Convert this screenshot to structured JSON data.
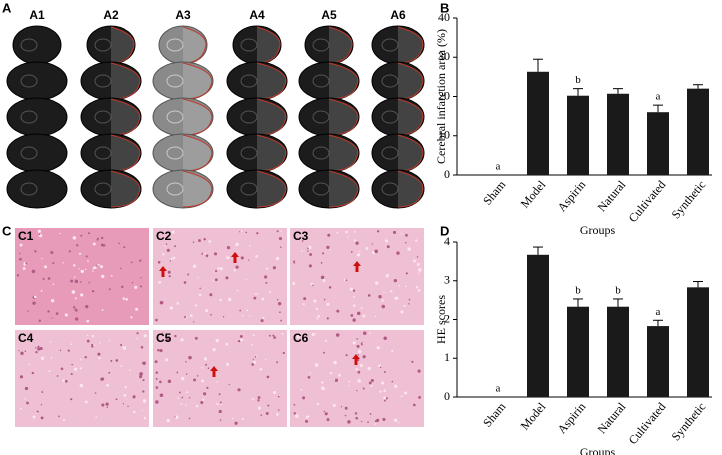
{
  "panel_labels": [
    "A",
    "B",
    "C",
    "D"
  ],
  "brain_images": [
    "A1",
    "A2",
    "A3",
    "A4",
    "A5",
    "A6"
  ],
  "histology_images": [
    "C1",
    "C2",
    "C3",
    "C4",
    "C5",
    "C6"
  ],
  "chart_data": [
    {
      "type": "bar",
      "ylabel": "Cerebral infarction area (%)",
      "xlabel": "Groups",
      "categories": [
        "Sham",
        "Model",
        "Aspirin",
        "Natural",
        "Cultivated",
        "Synthetic"
      ],
      "values": [
        0,
        26.3,
        20.2,
        20.7,
        16,
        22
      ],
      "errors": [
        0,
        3.2,
        1.8,
        1.3,
        1.8,
        1.0
      ],
      "annotations": [
        "a",
        null,
        "b",
        null,
        "a",
        null
      ],
      "color": "#1a1a1a",
      "ylim": [
        0,
        40
      ],
      "yticks": [
        0,
        10,
        20,
        30,
        40
      ]
    },
    {
      "type": "bar",
      "ylabel": "HE scores",
      "xlabel": "Groups",
      "categories": [
        "Sham",
        "Model",
        "Aspirin",
        "Natural",
        "Cultivated",
        "Synthetic"
      ],
      "values": [
        0,
        3.67,
        2.33,
        2.33,
        1.83,
        2.83
      ],
      "errors": [
        0,
        0.2,
        0.2,
        0.2,
        0.15,
        0.15
      ],
      "annotations": [
        "a",
        null,
        "b",
        "b",
        "a",
        null
      ],
      "color": "#1a1a1a",
      "ylim": [
        0,
        4
      ],
      "yticks": [
        0,
        1,
        2,
        3,
        4
      ]
    }
  ]
}
